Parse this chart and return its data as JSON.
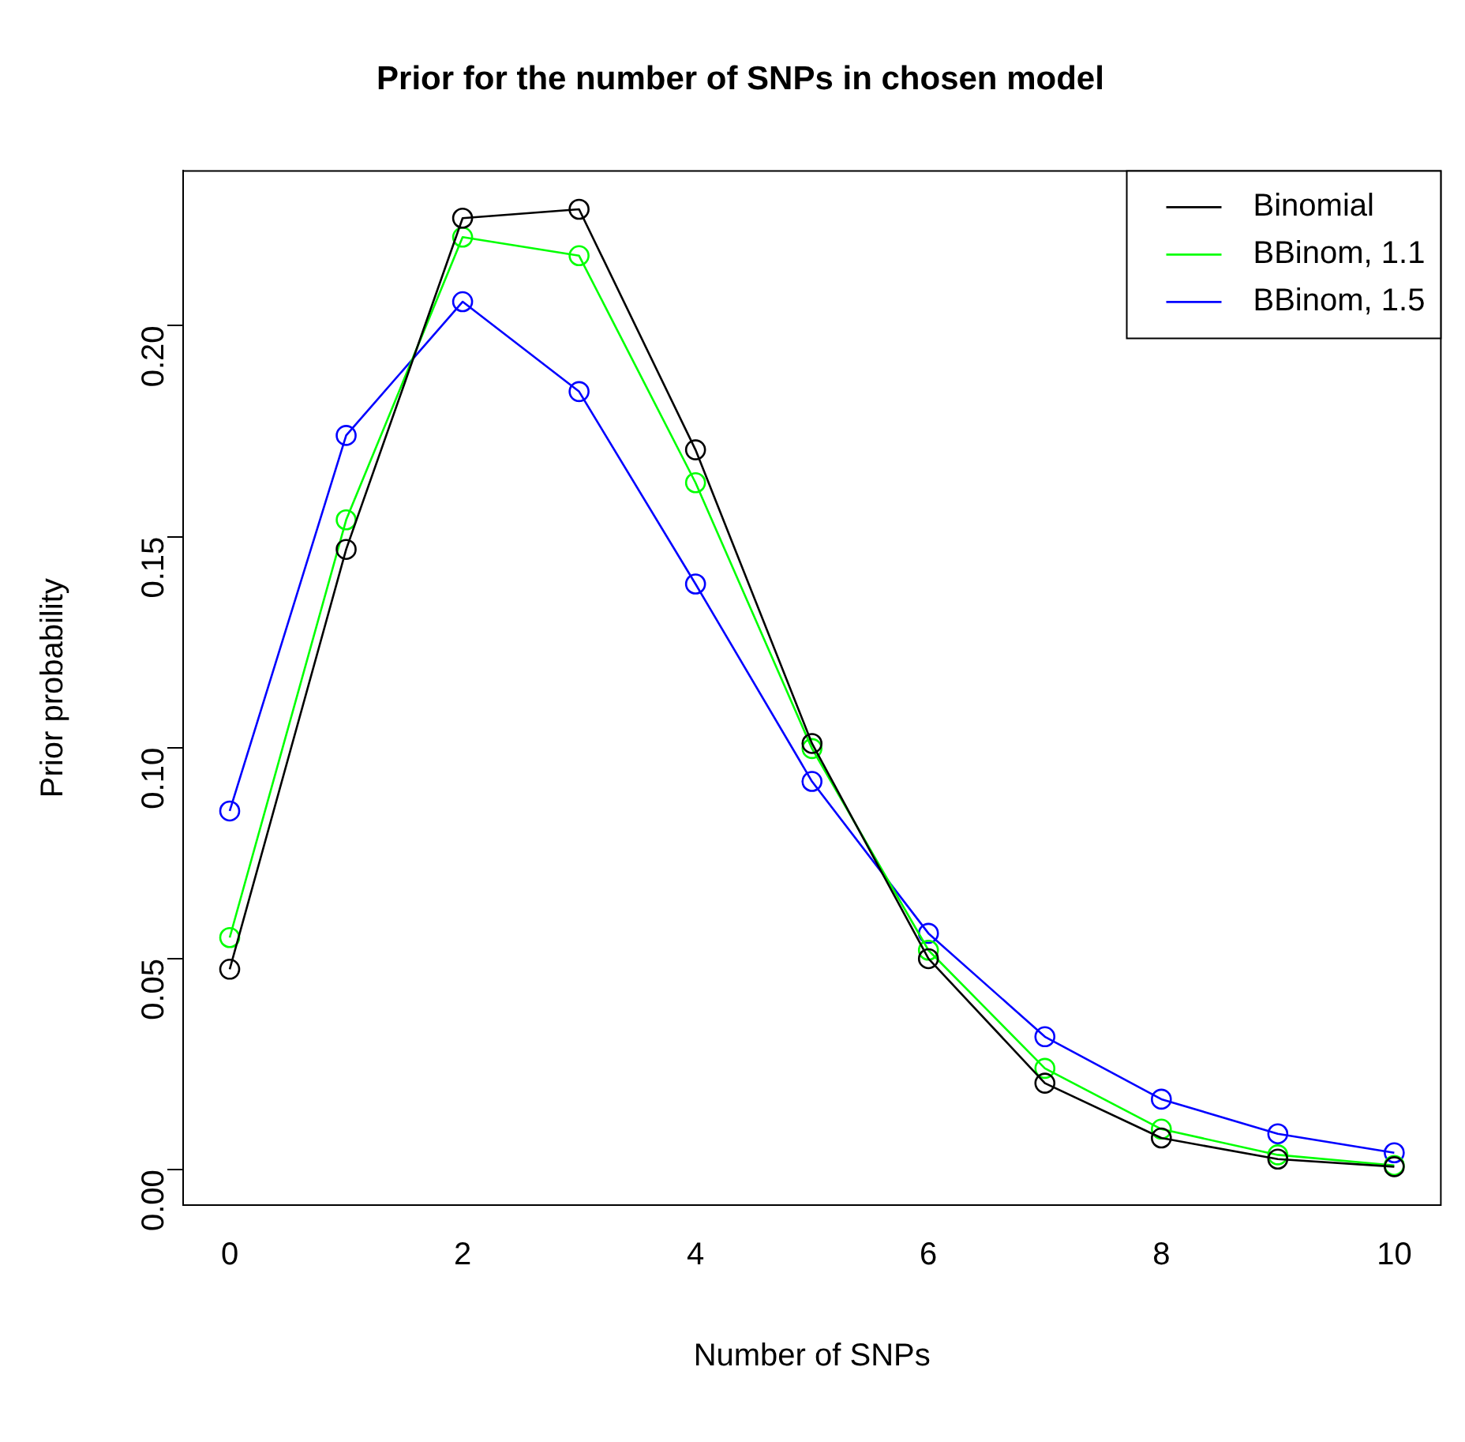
{
  "chart_data": {
    "type": "line",
    "title": "Prior for the number of SNPs in chosen model",
    "xlabel": "Number of SNPs",
    "ylabel": "Prior probability",
    "x": [
      0,
      1,
      2,
      3,
      4,
      5,
      6,
      7,
      8,
      9,
      10
    ],
    "series": [
      {
        "name": "Binomial",
        "color": "#000000",
        "values": [
          0.0475,
          0.147,
          0.2255,
          0.2276,
          0.1706,
          0.101,
          0.05,
          0.0205,
          0.0075,
          0.0025,
          0.0007
        ]
      },
      {
        "name": "BBinom, 1.1",
        "color": "#00ff00",
        "values": [
          0.055,
          0.154,
          0.221,
          0.2166,
          0.1628,
          0.0998,
          0.052,
          0.024,
          0.0096,
          0.0035,
          0.001
        ]
      },
      {
        "name": "BBinom, 1.5",
        "color": "#0000ff",
        "values": [
          0.085,
          0.174,
          0.2057,
          0.1844,
          0.1388,
          0.092,
          0.056,
          0.0315,
          0.0167,
          0.0085,
          0.004
        ]
      }
    ],
    "xlim": [
      -0.4,
      10.4
    ],
    "ylim": [
      -0.0084,
      0.2367
    ],
    "xticks": [
      0,
      2,
      4,
      6,
      8,
      10
    ],
    "yticks": [
      {
        "value": 0,
        "label": "0.00"
      },
      {
        "value": 0.05,
        "label": "0.05"
      },
      {
        "value": 0.1,
        "label": "0.10"
      },
      {
        "value": 0.15,
        "label": "0.15"
      },
      {
        "value": 0.2,
        "label": "0.20"
      }
    ],
    "grid": false,
    "legend": "top right",
    "marker": "circle",
    "line_style": "solid"
  }
}
